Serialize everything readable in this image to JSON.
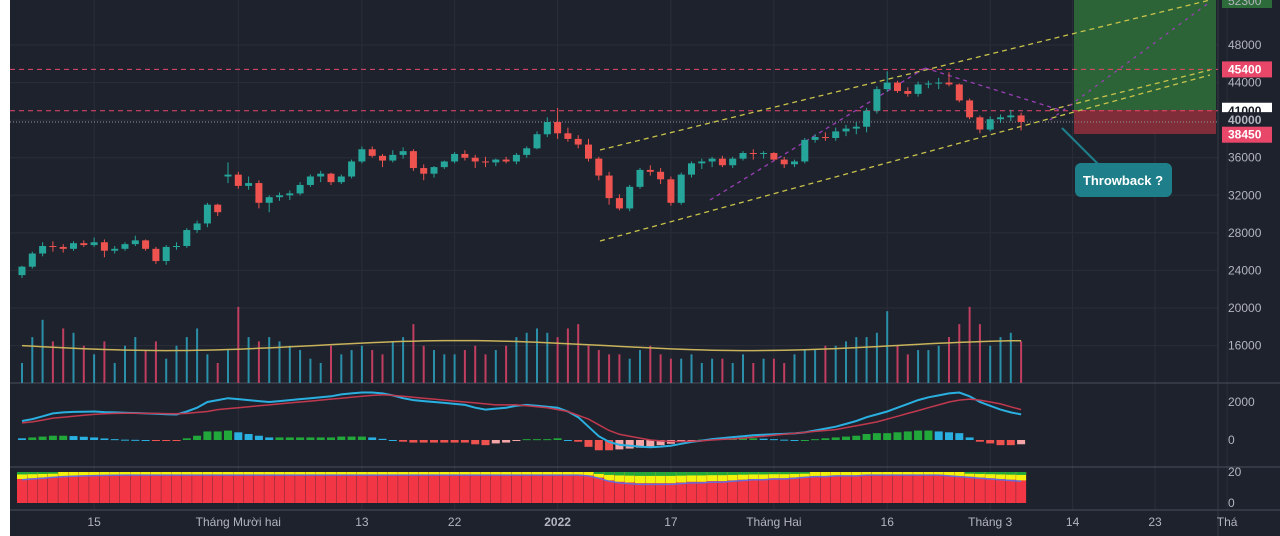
{
  "annotations": {
    "callout": "Throwback ?"
  },
  "colors": {
    "up": "#26a69a",
    "down": "#ef5350",
    "volume_up": "#2a8fa8",
    "volume_down": "#c03e60",
    "level": "#e8476a",
    "channel": "#c8c24a",
    "wedge": "#9a3fb5",
    "target_zone": "#2e6b3a",
    "stop_zone": "#8a2f3a",
    "macd": "#2ab0e0",
    "signal": "#c0394e",
    "stack_red": "#f23645",
    "stack_yellow": "#f2f20d",
    "stack_green": "#22a83a",
    "callout": "#1e7f8a"
  },
  "axes": {
    "price_ticks": [
      "48000",
      "44000",
      "40000",
      "36000",
      "32000",
      "28000",
      "24000",
      "20000",
      "16000"
    ],
    "osc_ticks": [
      "2000",
      "0"
    ],
    "stack_ticks": [
      "20",
      "0"
    ],
    "time_labels": [
      "15",
      "Tháng Mười hai",
      "13",
      "22",
      "2022",
      "17",
      "Tháng Hai",
      "16",
      "Tháng 3",
      "14",
      "23",
      "Thá"
    ],
    "top_cut_label": "52300"
  },
  "badges": [
    {
      "text": "45400",
      "value": 45400,
      "color": "#e8476a"
    },
    {
      "text": "41000",
      "value": 41000,
      "color": "#ffffff",
      "text_color": "#131722"
    },
    {
      "text": "40000",
      "value": 40000,
      "color": "#1e222d",
      "text_color": "#b2b5be"
    },
    {
      "text": "38450",
      "value": 38450,
      "color": "#e8476a"
    }
  ],
  "levels": {
    "resistance": 45400,
    "entry": 41000,
    "last_price": 39800
  },
  "chart_data": {
    "type": "candlestick",
    "ylim": [
      20000,
      52300
    ],
    "candles": [
      [
        23500,
        24500,
        23200,
        24400
      ],
      [
        24400,
        26000,
        24200,
        25800
      ],
      [
        25800,
        27000,
        25500,
        26600
      ],
      [
        26600,
        27100,
        26000,
        26500
      ],
      [
        26500,
        26800,
        25900,
        26300
      ],
      [
        26300,
        27100,
        26100,
        26900
      ],
      [
        26900,
        27200,
        26500,
        26700
      ],
      [
        26700,
        27500,
        26500,
        27000
      ],
      [
        27000,
        27300,
        25400,
        26100
      ],
      [
        26100,
        26600,
        25800,
        26300
      ],
      [
        26300,
        27000,
        26100,
        26800
      ],
      [
        26800,
        27700,
        26600,
        27200
      ],
      [
        27200,
        27300,
        26100,
        26300
      ],
      [
        26300,
        26500,
        24700,
        25000
      ],
      [
        25000,
        26700,
        24600,
        26500
      ],
      [
        26500,
        27000,
        26200,
        26600
      ],
      [
        26600,
        28500,
        26400,
        28300
      ],
      [
        28300,
        29300,
        28000,
        29000
      ],
      [
        29000,
        31200,
        28600,
        31000
      ],
      [
        31000,
        31100,
        29800,
        30200
      ],
      [
        34000,
        35500,
        33300,
        34200
      ],
      [
        34200,
        34500,
        32700,
        33000
      ],
      [
        33000,
        34000,
        32600,
        33300
      ],
      [
        33300,
        33600,
        30600,
        31200
      ],
      [
        31200,
        32000,
        30200,
        31800
      ],
      [
        31800,
        32300,
        31400,
        32000
      ],
      [
        32000,
        32500,
        31500,
        32200
      ],
      [
        32200,
        33400,
        32000,
        33100
      ],
      [
        33100,
        34200,
        32900,
        34000
      ],
      [
        34000,
        34600,
        33400,
        34300
      ],
      [
        34300,
        34400,
        33100,
        33400
      ],
      [
        33400,
        34200,
        33200,
        34000
      ],
      [
        34000,
        35800,
        33800,
        35600
      ],
      [
        35600,
        37200,
        35400,
        36900
      ],
      [
        36900,
        37200,
        36000,
        36200
      ],
      [
        36200,
        36400,
        35000,
        35700
      ],
      [
        35700,
        36800,
        35500,
        36300
      ],
      [
        36300,
        37100,
        35900,
        36700
      ],
      [
        36700,
        36900,
        34600,
        34900
      ],
      [
        34900,
        35300,
        33600,
        34300
      ],
      [
        34300,
        35100,
        33900,
        35000
      ],
      [
        35000,
        35700,
        34800,
        35600
      ],
      [
        35600,
        36600,
        35400,
        36400
      ],
      [
        36400,
        36800,
        35700,
        36000
      ],
      [
        36000,
        36300,
        34900,
        35600
      ],
      [
        35600,
        36100,
        35000,
        35500
      ],
      [
        35500,
        35900,
        35100,
        35800
      ],
      [
        35800,
        36100,
        35400,
        35600
      ],
      [
        35600,
        36500,
        35300,
        36300
      ],
      [
        36300,
        37200,
        36000,
        37000
      ],
      [
        37000,
        38800,
        36900,
        38500
      ],
      [
        38500,
        40300,
        38200,
        39800
      ],
      [
        39800,
        41300,
        38000,
        38600
      ],
      [
        38600,
        39200,
        37700,
        38000
      ],
      [
        38000,
        38400,
        37000,
        37400
      ],
      [
        37400,
        38000,
        35600,
        35900
      ],
      [
        35900,
        36100,
        33600,
        34100
      ],
      [
        34100,
        34500,
        31000,
        31700
      ],
      [
        31700,
        32100,
        30400,
        30600
      ],
      [
        30600,
        33100,
        30300,
        32900
      ],
      [
        32900,
        34900,
        32700,
        34700
      ],
      [
        34700,
        35200,
        34100,
        34500
      ],
      [
        34500,
        34900,
        33200,
        33700
      ],
      [
        33700,
        34000,
        30900,
        31200
      ],
      [
        31200,
        34400,
        31000,
        34200
      ],
      [
        34200,
        35600,
        33900,
        35400
      ],
      [
        35400,
        35900,
        34800,
        35600
      ],
      [
        35600,
        36100,
        35000,
        35900
      ],
      [
        35900,
        36200,
        35000,
        35200
      ],
      [
        35200,
        36100,
        34900,
        35900
      ],
      [
        35900,
        36700,
        35700,
        36500
      ],
      [
        36500,
        36900,
        35800,
        36400
      ],
      [
        36400,
        36700,
        35900,
        36500
      ],
      [
        36500,
        36600,
        35700,
        35800
      ],
      [
        35800,
        36100,
        34900,
        35300
      ],
      [
        35300,
        35800,
        35000,
        35600
      ],
      [
        35600,
        38100,
        35400,
        37900
      ],
      [
        37900,
        38500,
        37600,
        38200
      ],
      [
        38200,
        38700,
        37800,
        38100
      ],
      [
        38100,
        39200,
        37800,
        38800
      ],
      [
        38800,
        39500,
        38300,
        39100
      ],
      [
        39100,
        39800,
        38500,
        39300
      ],
      [
        39300,
        41300,
        38700,
        41000
      ],
      [
        41000,
        43600,
        40700,
        43300
      ],
      [
        43300,
        45200,
        43000,
        44000
      ],
      [
        44000,
        44200,
        42900,
        43100
      ],
      [
        43100,
        43500,
        42500,
        42800
      ],
      [
        42800,
        44100,
        42500,
        43800
      ],
      [
        43800,
        44200,
        43400,
        43900
      ],
      [
        43900,
        44500,
        43300,
        44000
      ],
      [
        44000,
        45100,
        43600,
        43800
      ],
      [
        43800,
        43900,
        41900,
        42100
      ],
      [
        42100,
        42300,
        40100,
        40300
      ],
      [
        40300,
        40500,
        38600,
        39000
      ],
      [
        39000,
        40400,
        38800,
        40100
      ],
      [
        40100,
        40600,
        39700,
        40300
      ],
      [
        40300,
        41100,
        39900,
        40500
      ],
      [
        40500,
        40800,
        38900,
        39800
      ]
    ],
    "volume": [
      8000,
      15000,
      19000,
      14000,
      17000,
      16000,
      13000,
      11000,
      14000,
      9000,
      13000,
      15000,
      12000,
      14000,
      10000,
      13000,
      15000,
      17000,
      11000,
      9000,
      12000,
      22000,
      15000,
      14000,
      15000,
      14000,
      13000,
      12000,
      10000,
      9000,
      13000,
      11000,
      12000,
      13000,
      12000,
      11000,
      14000,
      15000,
      18000,
      13000,
      12000,
      11000,
      11000,
      12000,
      13000,
      11000,
      12000,
      13000,
      15000,
      16000,
      17000,
      16000,
      15000,
      17000,
      18000,
      13000,
      12000,
      11000,
      11000,
      10000,
      12000,
      13000,
      11000,
      10000,
      10000,
      11000,
      9000,
      10000,
      10000,
      8000,
      11000,
      9000,
      10000,
      10000,
      9000,
      11000,
      12000,
      12000,
      13000,
      13000,
      14000,
      15000,
      15000,
      16000,
      21000,
      13000,
      11000,
      12000,
      12000,
      13000,
      15000,
      18000,
      22000,
      18000,
      13000,
      15000,
      16000,
      14000
    ],
    "volume_ma_value": 16000,
    "macd_range": [
      -1000,
      2600
    ],
    "macd": [
      1000,
      1100,
      1250,
      1400,
      1450,
      1480,
      1490,
      1500,
      1470,
      1450,
      1430,
      1420,
      1400,
      1380,
      1360,
      1340,
      1500,
      1700,
      2000,
      2100,
      2200,
      2150,
      2100,
      2050,
      2000,
      2050,
      2100,
      2150,
      2200,
      2250,
      2300,
      2400,
      2450,
      2500,
      2500,
      2450,
      2350,
      2200,
      2100,
      2050,
      2000,
      1950,
      1900,
      1850,
      1700,
      1600,
      1650,
      1700,
      1800,
      1850,
      1800,
      1750,
      1700,
      1500,
      1200,
      700,
      200,
      -100,
      -250,
      -300,
      -350,
      -380,
      -350,
      -300,
      -200,
      -100,
      -30,
      50,
      100,
      150,
      200,
      250,
      280,
      300,
      320,
      350,
      400,
      500,
      600,
      700,
      850,
      1000,
      1200,
      1350,
      1500,
      1700,
      1900,
      2100,
      2250,
      2350,
      2450,
      2500,
      2300,
      2000,
      1800,
      1600,
      1450,
      1350
    ],
    "signal": [
      900,
      950,
      1050,
      1150,
      1200,
      1250,
      1300,
      1350,
      1380,
      1400,
      1410,
      1410,
      1400,
      1400,
      1390,
      1380,
      1400,
      1450,
      1500,
      1600,
      1650,
      1700,
      1750,
      1800,
      1850,
      1900,
      1950,
      2000,
      2050,
      2100,
      2150,
      2200,
      2250,
      2300,
      2350,
      2380,
      2350,
      2300,
      2250,
      2200,
      2150,
      2100,
      2050,
      2000,
      1950,
      1900,
      1850,
      1850,
      1850,
      1800,
      1750,
      1700,
      1600,
      1500,
      1300,
      1100,
      800,
      500,
      300,
      200,
      100,
      0,
      -50,
      -80,
      -80,
      -70,
      -50,
      0,
      30,
      60,
      100,
      150,
      200,
      250,
      300,
      350,
      400,
      450,
      500,
      550,
      650,
      750,
      850,
      950,
      1100,
      1250,
      1400,
      1550,
      1700,
      1850,
      2000,
      2100,
      2150,
      2100,
      2000,
      1900,
      1750,
      1600
    ],
    "stack_range": [
      -3,
      22
    ],
    "stack_line": [
      15,
      15.5,
      16,
      16.5,
      17,
      17.3,
      17.5,
      17.7,
      17.8,
      17.9,
      18,
      18,
      18,
      18,
      18,
      18,
      18,
      18,
      18,
      18,
      18,
      18,
      18,
      18,
      18,
      18,
      18,
      18,
      18,
      18,
      18,
      18,
      18,
      18,
      18,
      18,
      18,
      18,
      18,
      18,
      18,
      18,
      18,
      18,
      18,
      18,
      18,
      18,
      18,
      18,
      18,
      18,
      18,
      18,
      18,
      17.5,
      16,
      14,
      13,
      12.5,
      12,
      12,
      12,
      12,
      12.5,
      13,
      13,
      13.5,
      13.5,
      14,
      14.5,
      15,
      15,
      15.5,
      15.5,
      16,
      16.5,
      17,
      17,
      17.5,
      17.5,
      17.5,
      18,
      18,
      18,
      18,
      18,
      18,
      18,
      18,
      17.5,
      17,
      16.5,
      16,
      15.5,
      15,
      14.5,
      14
    ],
    "time_label_index": [
      7,
      21,
      33,
      42,
      52,
      63,
      73,
      84,
      94,
      102,
      110,
      117
    ]
  }
}
